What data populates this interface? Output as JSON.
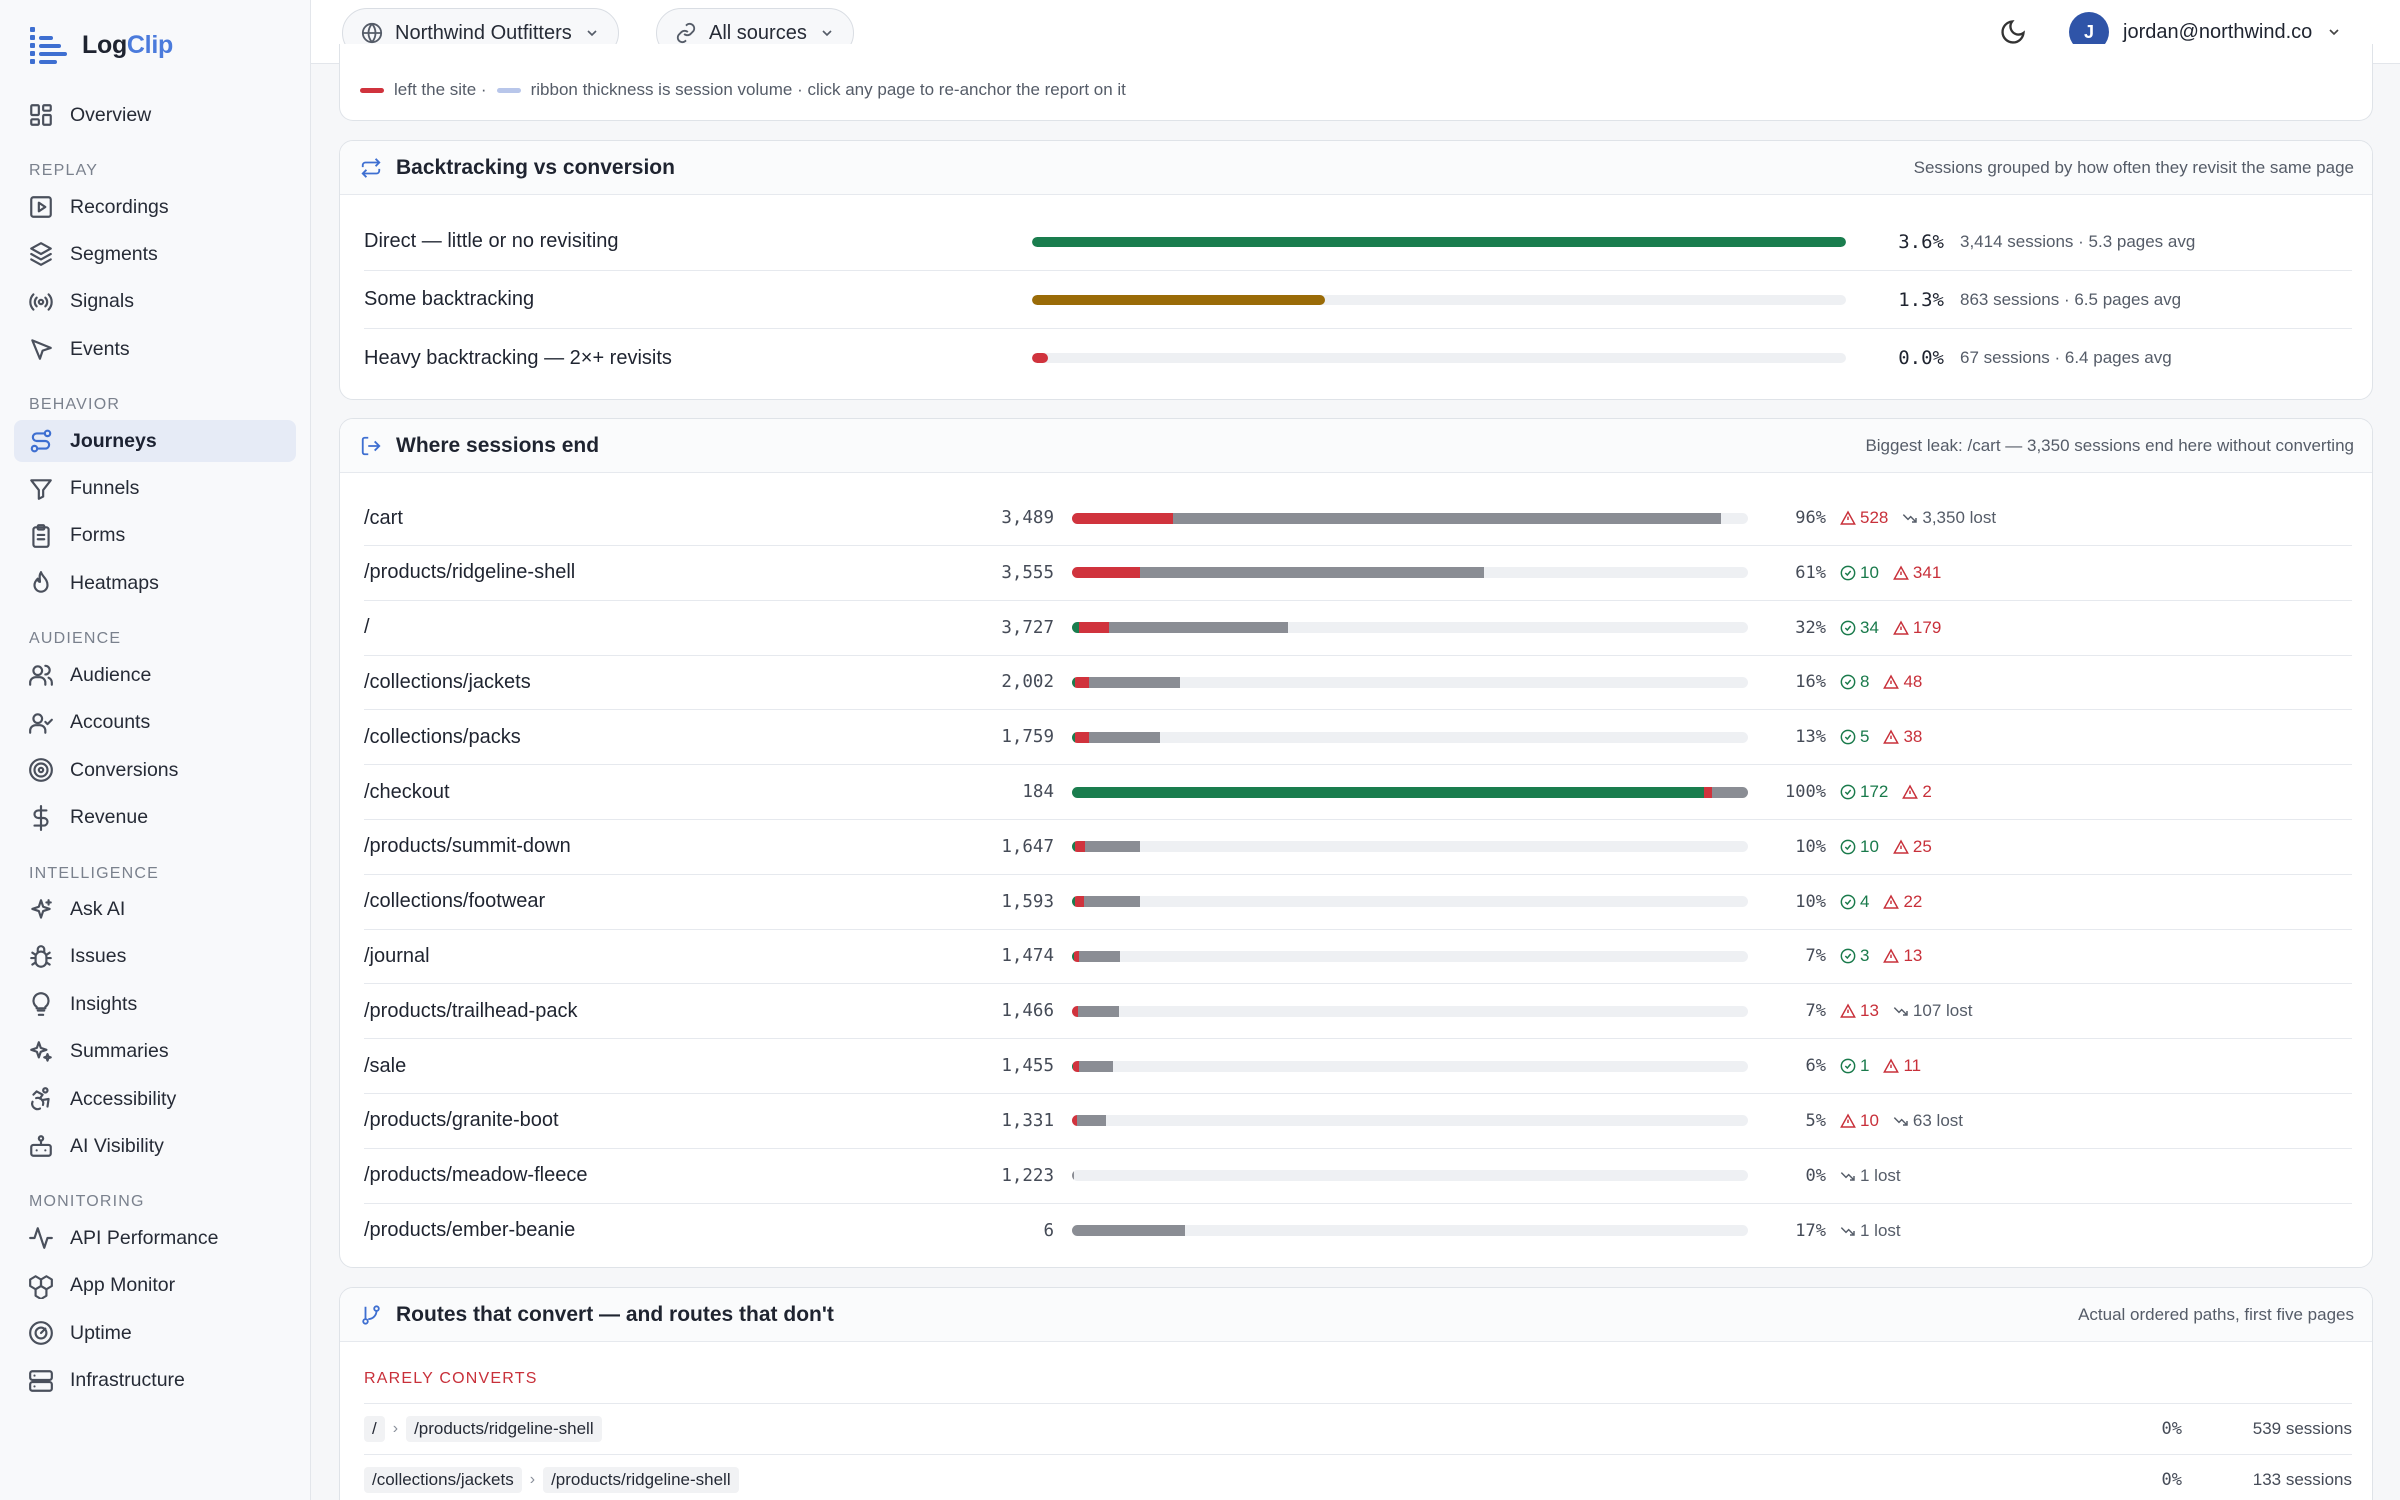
{
  "app": {
    "name_a": "Log",
    "name_b": "Clip"
  },
  "sidebar": {
    "top": [
      {
        "label": "Overview",
        "icon": "grid-icon"
      }
    ],
    "sections": [
      {
        "title": "REPLAY",
        "items": [
          {
            "label": "Recordings",
            "icon": "play-icon"
          },
          {
            "label": "Segments",
            "icon": "layers-icon"
          },
          {
            "label": "Signals",
            "icon": "radio-icon"
          },
          {
            "label": "Events",
            "icon": "cursor-icon"
          }
        ]
      },
      {
        "title": "BEHAVIOR",
        "items": [
          {
            "label": "Journeys",
            "icon": "route-icon",
            "active": true
          },
          {
            "label": "Funnels",
            "icon": "filter-icon"
          },
          {
            "label": "Forms",
            "icon": "clipboard-icon"
          },
          {
            "label": "Heatmaps",
            "icon": "flame-icon"
          }
        ]
      },
      {
        "title": "AUDIENCE",
        "items": [
          {
            "label": "Audience",
            "icon": "users-icon"
          },
          {
            "label": "Accounts",
            "icon": "user-check-icon"
          },
          {
            "label": "Conversions",
            "icon": "target-icon"
          },
          {
            "label": "Revenue",
            "icon": "dollar-icon"
          }
        ]
      },
      {
        "title": "INTELLIGENCE",
        "items": [
          {
            "label": "Ask AI",
            "icon": "sparkle-icon"
          },
          {
            "label": "Issues",
            "icon": "bug-icon"
          },
          {
            "label": "Insights",
            "icon": "lightbulb-icon"
          },
          {
            "label": "Summaries",
            "icon": "sparkles-icon"
          },
          {
            "label": "Accessibility",
            "icon": "accessibility-icon"
          },
          {
            "label": "AI Visibility",
            "icon": "bot-icon"
          }
        ]
      },
      {
        "title": "MONITORING",
        "items": [
          {
            "label": "API Performance",
            "icon": "activity-icon"
          },
          {
            "label": "App Monitor",
            "icon": "boxes-icon"
          },
          {
            "label": "Uptime",
            "icon": "gauge-icon"
          },
          {
            "label": "Infrastructure",
            "icon": "server-icon"
          }
        ]
      }
    ]
  },
  "topbar": {
    "workspace": "Northwind Outfitters",
    "sources": "All sources",
    "user_initial": "J",
    "user_email": "jordan@northwind.co"
  },
  "legend": {
    "left_text": "left the site ·",
    "ribbon_text": "ribbon thickness is session volume · click any page to re-anchor the report on it",
    "colors": {
      "left": "#d0333d",
      "ribbon": "#b8c6ea"
    }
  },
  "backtracking": {
    "title": "Backtracking vs conversion",
    "hint": "Sessions grouped by how often they revisit the same page",
    "rows": [
      {
        "label": "Direct — little or no revisiting",
        "pct": "3.6%",
        "bar_fraction": 1.0,
        "color": "#1a7d4e",
        "meta": "3,414 sessions · 5.3 pages avg"
      },
      {
        "label": "Some backtracking",
        "pct": "1.3%",
        "bar_fraction": 0.36,
        "color": "#9a6b07",
        "meta": "863 sessions · 6.5 pages avg"
      },
      {
        "label": "Heavy backtracking — 2×+ revisits",
        "pct": "0.0%",
        "bar_fraction": 0.02,
        "color": "#d0333d",
        "meta": "67 sessions · 6.4 pages avg"
      }
    ]
  },
  "session_end": {
    "title": "Where sessions end",
    "hint": "Biggest leak: /cart — 3,350 sessions end here without converting",
    "rows": [
      {
        "page": "/cart",
        "count": "3,489",
        "pct": "96%",
        "conv": 0,
        "err": 0.15,
        "exit": 0.81,
        "ok": null,
        "warn": "528",
        "lost": "3,350 lost"
      },
      {
        "page": "/products/ridgeline-shell",
        "count": "3,555",
        "pct": "61%",
        "conv": 0,
        "err": 0.1,
        "exit": 0.51,
        "ok": "10",
        "warn": "341",
        "lost": null
      },
      {
        "page": "/",
        "count": "3,727",
        "pct": "32%",
        "conv": 0.01,
        "err": 0.045,
        "exit": 0.265,
        "ok": "34",
        "warn": "179",
        "lost": null
      },
      {
        "page": "/collections/jackets",
        "count": "2,002",
        "pct": "16%",
        "conv": 0.005,
        "err": 0.02,
        "exit": 0.135,
        "ok": "8",
        "warn": "48",
        "lost": null
      },
      {
        "page": "/collections/packs",
        "count": "1,759",
        "pct": "13%",
        "conv": 0.005,
        "err": 0.02,
        "exit": 0.105,
        "ok": "5",
        "warn": "38",
        "lost": null
      },
      {
        "page": "/checkout",
        "count": "184",
        "pct": "100%",
        "conv": 0.935,
        "err": 0.012,
        "exit": 0.053,
        "ok": "172",
        "warn": "2",
        "lost": null
      },
      {
        "page": "/products/summit-down",
        "count": "1,647",
        "pct": "10%",
        "conv": 0.004,
        "err": 0.015,
        "exit": 0.081,
        "ok": "10",
        "warn": "25",
        "lost": null
      },
      {
        "page": "/collections/footwear",
        "count": "1,593",
        "pct": "10%",
        "conv": 0.004,
        "err": 0.014,
        "exit": 0.082,
        "ok": "4",
        "warn": "22",
        "lost": null
      },
      {
        "page": "/journal",
        "count": "1,474",
        "pct": "7%",
        "conv": 0.003,
        "err": 0.008,
        "exit": 0.06,
        "ok": "3",
        "warn": "13",
        "lost": null
      },
      {
        "page": "/products/trailhead-pack",
        "count": "1,466",
        "pct": "7%",
        "conv": 0,
        "err": 0.009,
        "exit": 0.061,
        "ok": null,
        "warn": "13",
        "lost": "107 lost"
      },
      {
        "page": "/sale",
        "count": "1,455",
        "pct": "6%",
        "conv": 0.002,
        "err": 0.008,
        "exit": 0.05,
        "ok": "1",
        "warn": "11",
        "lost": null
      },
      {
        "page": "/products/granite-boot",
        "count": "1,331",
        "pct": "5%",
        "conv": 0,
        "err": 0.008,
        "exit": 0.042,
        "ok": null,
        "warn": "10",
        "lost": "63 lost"
      },
      {
        "page": "/products/meadow-fleece",
        "count": "1,223",
        "pct": "0%",
        "conv": 0,
        "err": 0,
        "exit": 0.003,
        "ok": null,
        "warn": null,
        "lost": "1 lost"
      },
      {
        "page": "/products/ember-beanie",
        "count": "6",
        "pct": "17%",
        "conv": 0,
        "err": 0,
        "exit": 0.167,
        "ok": null,
        "warn": null,
        "lost": "1 lost"
      }
    ],
    "colors": {
      "conv": "#1a7d4e",
      "err": "#d0333d",
      "exit": "#8a8d94"
    }
  },
  "routes": {
    "title": "Routes that convert — and routes that don't",
    "hint": "Actual ordered paths, first five pages",
    "section": "RARELY CONVERTS",
    "rows": [
      {
        "steps": [
          "/",
          "/products/ridgeline-shell"
        ],
        "pct": "0%",
        "sessions": "539 sessions"
      },
      {
        "steps": [
          "/collections/jackets",
          "/products/ridgeline-shell"
        ],
        "pct": "0%",
        "sessions": "133 sessions"
      }
    ]
  }
}
